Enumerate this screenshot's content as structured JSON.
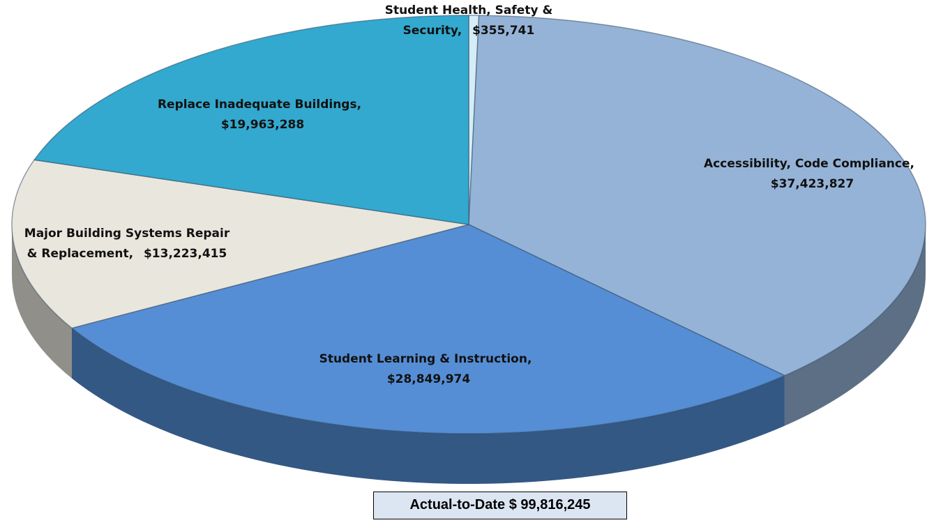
{
  "chart_data": {
    "type": "pie",
    "categories": [
      "Student Health, Safety & Security,",
      "Accessibility, Code Compliance,",
      "Student Learning & Instruction,",
      "Major Building Systems Repair & Replacement,",
      "Replace Inadequate Buildings,"
    ],
    "values": [
      355741,
      37423827,
      28849974,
      13223415,
      19963288
    ],
    "value_labels": [
      "$355,741",
      "$37,423,827",
      "$28,849,974",
      "$13,223,415",
      "$19,963,288"
    ],
    "colors": [
      "#d6ecf6",
      "#95b3d7",
      "#558ed5",
      "#e9e7dd",
      "#33a9cf"
    ],
    "footer": "Actual-to-Date $ 99,816,245"
  }
}
